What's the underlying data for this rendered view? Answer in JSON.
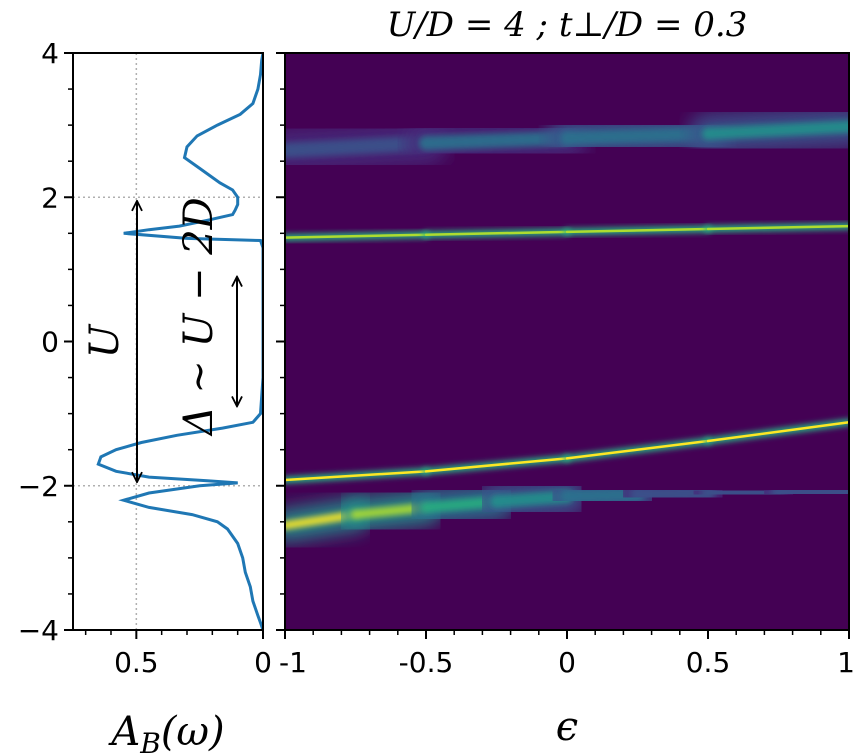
{
  "chart_data": [
    {
      "type": "line",
      "panel": "left",
      "title": "",
      "xlabel": "A_B(ω)",
      "ylabel": "",
      "xlim": [
        0.75,
        0.0
      ],
      "ylim": [
        -4,
        4
      ],
      "xticks": [
        0.5,
        0
      ],
      "xtick_labels": [
        "0.5",
        "0"
      ],
      "yticks": [
        -4,
        -2,
        0,
        2,
        4
      ],
      "ytick_labels": [
        "−4",
        "−2",
        "0",
        "2",
        "4"
      ],
      "grid": true,
      "color": "#1f77b4",
      "series": [
        {
          "name": "A_B(ω)",
          "points": [
            [
              -4.0,
              0.0
            ],
            [
              -3.9,
              0.01
            ],
            [
              -3.8,
              0.02
            ],
            [
              -3.6,
              0.04
            ],
            [
              -3.4,
              0.05
            ],
            [
              -3.2,
              0.07
            ],
            [
              -3.0,
              0.08
            ],
            [
              -2.8,
              0.1
            ],
            [
              -2.6,
              0.14
            ],
            [
              -2.5,
              0.18
            ],
            [
              -2.4,
              0.28
            ],
            [
              -2.3,
              0.45
            ],
            [
              -2.2,
              0.55
            ],
            [
              -2.1,
              0.45
            ],
            [
              -2.0,
              0.25
            ],
            [
              -1.96,
              0.1
            ],
            [
              -1.93,
              0.22
            ],
            [
              -1.88,
              0.45
            ],
            [
              -1.8,
              0.58
            ],
            [
              -1.7,
              0.65
            ],
            [
              -1.6,
              0.64
            ],
            [
              -1.5,
              0.58
            ],
            [
              -1.4,
              0.48
            ],
            [
              -1.3,
              0.34
            ],
            [
              -1.2,
              0.16
            ],
            [
              -1.12,
              0.04
            ],
            [
              -1.0,
              0.01
            ],
            [
              -0.5,
              0.0
            ],
            [
              0.0,
              0.0
            ],
            [
              0.5,
              0.0
            ],
            [
              1.0,
              0.0
            ],
            [
              1.3,
              0.0
            ],
            [
              1.4,
              0.01
            ],
            [
              1.43,
              0.3
            ],
            [
              1.5,
              0.55
            ],
            [
              1.55,
              0.45
            ],
            [
              1.6,
              0.33
            ],
            [
              1.68,
              0.22
            ],
            [
              1.76,
              0.12
            ],
            [
              1.82,
              0.11
            ],
            [
              1.9,
              0.1
            ],
            [
              2.0,
              0.1
            ],
            [
              2.1,
              0.12
            ],
            [
              2.2,
              0.17
            ],
            [
              2.4,
              0.25
            ],
            [
              2.55,
              0.31
            ],
            [
              2.7,
              0.3
            ],
            [
              2.85,
              0.26
            ],
            [
              3.0,
              0.18
            ],
            [
              3.15,
              0.09
            ],
            [
              3.3,
              0.04
            ],
            [
              3.5,
              0.02
            ],
            [
              3.7,
              0.01
            ],
            [
              3.9,
              0.005
            ],
            [
              4.0,
              0.0
            ]
          ]
        }
      ],
      "annotations": [
        {
          "text": "U",
          "kind": "double-arrow",
          "from": -1.95,
          "to": 1.95
        },
        {
          "text": "Δ ∼ U − 2D",
          "kind": "double-arrow",
          "from": -0.9,
          "to": 0.9
        }
      ]
    },
    {
      "type": "heatmap",
      "panel": "right",
      "title": "U/D = 4 ; t⊥/D = 0.3",
      "xlabel": "ϵ",
      "ylabel": "",
      "xlim": [
        -1,
        1
      ],
      "ylim": [
        -4,
        4
      ],
      "xticks": [
        -1,
        -0.5,
        0,
        0.5,
        1
      ],
      "xtick_labels": [
        "-1",
        "-0.5",
        "0",
        "0.5",
        "1"
      ],
      "colormap": "viridis",
      "colors": {
        "low": "#440154",
        "mid": "#21918c",
        "high": "#fde725"
      },
      "bands": [
        {
          "name": "upper Hubbard band",
          "sharp": false,
          "x": [
            -1,
            -0.5,
            0,
            0.5,
            1
          ],
          "y": [
            2.65,
            2.75,
            2.82,
            2.88,
            2.98
          ],
          "intensity": [
            0.25,
            0.3,
            0.35,
            0.45,
            0.6
          ]
        },
        {
          "name": "upper sharp line",
          "sharp": true,
          "x": [
            -1,
            -0.5,
            0,
            0.5,
            1
          ],
          "y": [
            1.44,
            1.48,
            1.52,
            1.56,
            1.6
          ],
          "intensity": [
            0.9,
            0.9,
            0.9,
            0.9,
            0.9
          ]
        },
        {
          "name": "lower sharp line",
          "sharp": true,
          "x": [
            -1,
            -0.5,
            0,
            0.5,
            1
          ],
          "y": [
            -1.92,
            -1.8,
            -1.62,
            -1.38,
            -1.12
          ],
          "intensity": [
            0.95,
            0.95,
            0.95,
            0.95,
            0.95
          ]
        },
        {
          "name": "lower Hubbard band",
          "sharp": false,
          "x": [
            -1,
            -0.75,
            -0.5,
            -0.25,
            0,
            0.25,
            0.5,
            0.75,
            1
          ],
          "y": [
            -2.55,
            -2.4,
            -2.3,
            -2.22,
            -2.15,
            -2.12,
            -2.1,
            -2.09,
            -2.08
          ],
          "intensity": [
            1.0,
            0.95,
            0.8,
            0.55,
            0.4,
            0.3,
            0.25,
            0.22,
            0.2
          ]
        }
      ]
    }
  ]
}
